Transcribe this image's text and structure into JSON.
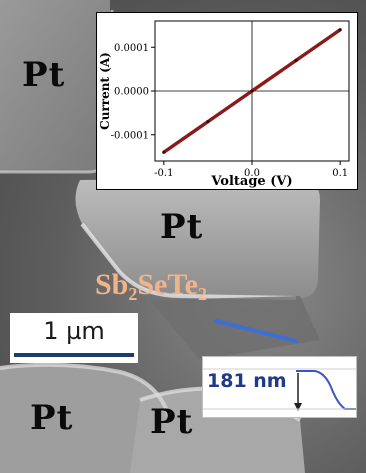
{
  "labels": {
    "pt_top_left": "Pt",
    "pt_center": "Pt",
    "pt_bottom_left": "Pt",
    "pt_bottom_right": "Pt",
    "material_base": "Sb",
    "material_sub1": "2",
    "material_mid": "SeTe",
    "material_sub2": "2"
  },
  "scale_bar": {
    "text": "1 µm"
  },
  "profile_inset": {
    "text": "181 nm"
  },
  "colors": {
    "trace": "#8b1a1a",
    "line_scan": "#3b6fd6",
    "material_label": "#f3b38a"
  },
  "chart_data": {
    "type": "line",
    "title": "",
    "xlabel": "Voltage (V)",
    "ylabel": "Current (A)",
    "xlim": [
      -0.11,
      0.11
    ],
    "ylim": [
      -0.00016,
      0.00016
    ],
    "xticks": [
      "-0.1",
      "0.0",
      "0.1"
    ],
    "yticks": [
      "0.0001",
      "0.0000",
      "-0.0001"
    ],
    "grid": false,
    "series": [
      {
        "x": [
          -0.1,
          -0.05,
          0.0,
          0.05,
          0.1
        ],
        "y": [
          -0.00014,
          -7e-05,
          0.0,
          7e-05,
          0.00014
        ]
      }
    ]
  }
}
